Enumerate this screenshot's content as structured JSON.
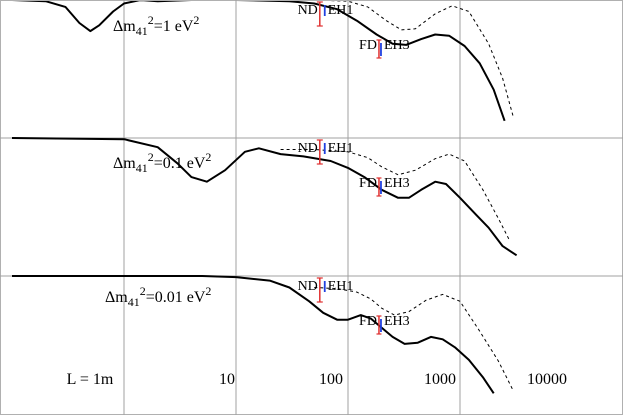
{
  "chart_data": {
    "type": "line",
    "x_scale": "log",
    "x_range": [
      1,
      35000
    ],
    "x_ticks": [
      {
        "value": 1,
        "label": "L = 1m"
      },
      {
        "value": 10,
        "label": "10"
      },
      {
        "value": 100,
        "label": "100"
      },
      {
        "value": 1000,
        "label": "1000"
      },
      {
        "value": 10000,
        "label": "10000"
      }
    ],
    "grid": true,
    "panels": [
      {
        "label_text": "Δm",
        "label_sub": "41",
        "label_sup": "2",
        "label_rest": "=1 eV",
        "label_sup2": "2",
        "solid": [
          [
            1,
            1.0
          ],
          [
            2,
            0.99
          ],
          [
            3,
            0.94
          ],
          [
            4,
            0.8
          ],
          [
            5,
            0.73
          ],
          [
            6,
            0.78
          ],
          [
            8,
            0.9
          ],
          [
            10,
            0.97
          ],
          [
            14,
            1.0
          ],
          [
            20,
            0.99
          ],
          [
            40,
            1.0
          ],
          [
            100,
            1.0
          ],
          [
            300,
            0.99
          ],
          [
            500,
            0.97
          ],
          [
            800,
            0.92
          ],
          [
            1200,
            0.82
          ],
          [
            1800,
            0.7
          ],
          [
            2500,
            0.62
          ],
          [
            3300,
            0.61
          ],
          [
            4500,
            0.66
          ],
          [
            6000,
            0.7
          ],
          [
            8000,
            0.69
          ],
          [
            11000,
            0.6
          ],
          [
            15000,
            0.45
          ],
          [
            20000,
            0.22
          ],
          [
            25000,
            -0.05
          ]
        ],
        "dashed": [
          [
            300,
            1.0
          ],
          [
            500,
            1.0
          ],
          [
            1000,
            0.99
          ],
          [
            1500,
            0.94
          ],
          [
            2200,
            0.82
          ],
          [
            3000,
            0.74
          ],
          [
            4000,
            0.75
          ],
          [
            6000,
            0.88
          ],
          [
            8500,
            0.95
          ],
          [
            12000,
            0.9
          ],
          [
            18000,
            0.62
          ],
          [
            24000,
            0.32
          ],
          [
            30000,
            -0.02
          ]
        ],
        "markers": [
          {
            "name": "ND",
            "x": 560
          },
          {
            "name": "EH1",
            "x": 620
          },
          {
            "name": "FD",
            "x": 1890
          },
          {
            "name": "EH3",
            "x": 1970
          }
        ]
      },
      {
        "label_text": "Δm",
        "label_sub": "41",
        "label_sup": "2",
        "label_rest": "=0.1 eV",
        "label_sup2": "2",
        "solid": [
          [
            1,
            1.0
          ],
          [
            10,
            0.99
          ],
          [
            20,
            0.92
          ],
          [
            30,
            0.78
          ],
          [
            40,
            0.66
          ],
          [
            55,
            0.62
          ],
          [
            80,
            0.72
          ],
          [
            120,
            0.88
          ],
          [
            160,
            0.91
          ],
          [
            250,
            0.86
          ],
          [
            400,
            0.84
          ],
          [
            700,
            0.8
          ],
          [
            1000,
            0.74
          ],
          [
            1400,
            0.66
          ],
          [
            2000,
            0.55
          ],
          [
            2800,
            0.48
          ],
          [
            3500,
            0.48
          ],
          [
            4500,
            0.55
          ],
          [
            6000,
            0.62
          ],
          [
            7500,
            0.6
          ],
          [
            10000,
            0.48
          ],
          [
            14000,
            0.33
          ],
          [
            18000,
            0.22
          ],
          [
            24000,
            0.06
          ],
          [
            32000,
            -0.02
          ]
        ],
        "dashed": [
          [
            250,
            0.9
          ],
          [
            500,
            0.9
          ],
          [
            1000,
            0.88
          ],
          [
            1500,
            0.83
          ],
          [
            2000,
            0.75
          ],
          [
            2800,
            0.68
          ],
          [
            4000,
            0.72
          ],
          [
            6000,
            0.82
          ],
          [
            8000,
            0.86
          ],
          [
            11000,
            0.8
          ],
          [
            16000,
            0.55
          ],
          [
            22000,
            0.3
          ],
          [
            28000,
            0.1
          ]
        ],
        "markers": [
          {
            "name": "ND",
            "x": 560
          },
          {
            "name": "EH1",
            "x": 620
          },
          {
            "name": "FD",
            "x": 1890
          },
          {
            "name": "EH3",
            "x": 1970
          }
        ]
      },
      {
        "label_text": "Δm",
        "label_sub": "41",
        "label_sup": "2",
        "label_rest": "=0.01 eV",
        "label_sup2": "2",
        "solid": [
          [
            1,
            1.0
          ],
          [
            50,
            1.0
          ],
          [
            100,
            0.99
          ],
          [
            200,
            0.96
          ],
          [
            300,
            0.9
          ],
          [
            450,
            0.78
          ],
          [
            600,
            0.68
          ],
          [
            800,
            0.62
          ],
          [
            1000,
            0.62
          ],
          [
            1300,
            0.66
          ],
          [
            1600,
            0.63
          ],
          [
            2000,
            0.55
          ],
          [
            2500,
            0.47
          ],
          [
            3200,
            0.41
          ],
          [
            4200,
            0.42
          ],
          [
            5500,
            0.47
          ],
          [
            7000,
            0.45
          ],
          [
            9000,
            0.38
          ],
          [
            12000,
            0.27
          ],
          [
            16000,
            0.12
          ],
          [
            20000,
            -0.02
          ]
        ],
        "dashed": [
          [
            500,
            0.9
          ],
          [
            800,
            0.89
          ],
          [
            1200,
            0.86
          ],
          [
            1600,
            0.8
          ],
          [
            2000,
            0.72
          ],
          [
            2600,
            0.66
          ],
          [
            3500,
            0.69
          ],
          [
            5000,
            0.79
          ],
          [
            7000,
            0.84
          ],
          [
            10000,
            0.78
          ],
          [
            15000,
            0.52
          ],
          [
            22000,
            0.26
          ],
          [
            30000,
            0.0
          ]
        ],
        "markers": [
          {
            "name": "ND",
            "x": 560
          },
          {
            "name": "EH1",
            "x": 620
          },
          {
            "name": "FD",
            "x": 1890
          },
          {
            "name": "EH3",
            "x": 1970
          }
        ]
      }
    ],
    "colors": {
      "curve": "#000000",
      "grid": "#a0a0a0",
      "frame": "#b0b0b0",
      "red": "#e03030",
      "blue": "#2040e0"
    }
  }
}
